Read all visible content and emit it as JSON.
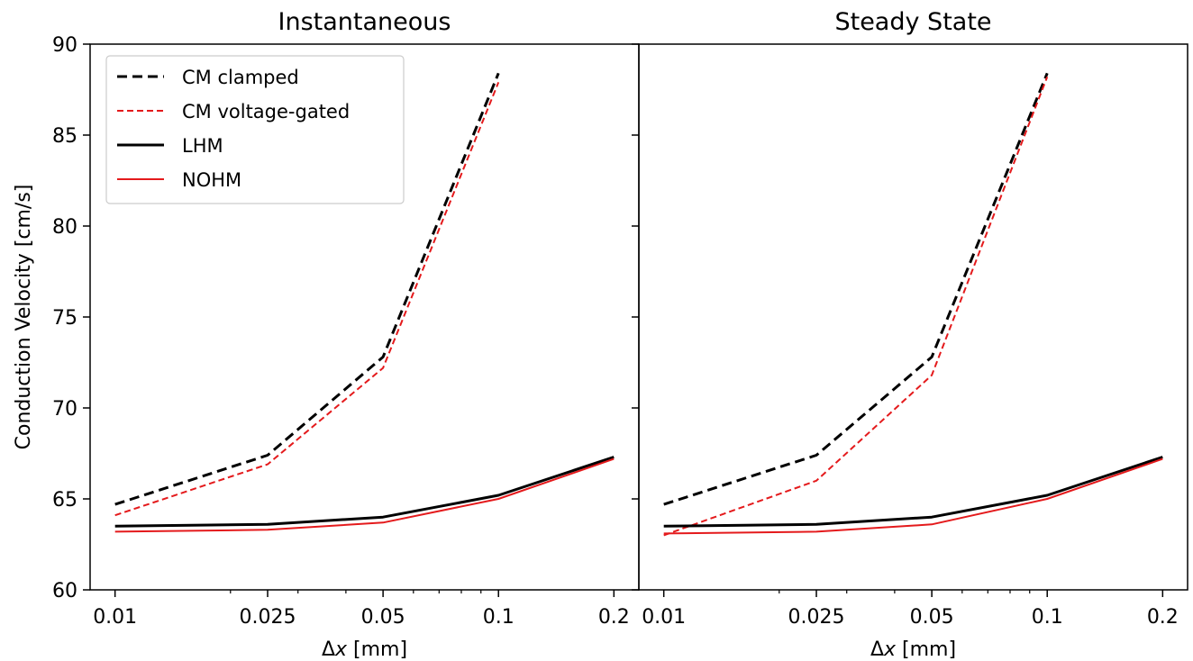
{
  "chart_data": {
    "type": "line",
    "shared": {
      "x": [
        0.01,
        0.025,
        0.05,
        0.1,
        0.2
      ],
      "xscale": "log",
      "xticks": [
        0.01,
        0.025,
        0.05,
        0.1,
        0.2
      ],
      "xtick_labels": [
        "0.01",
        "0.025",
        "0.05",
        "0.1",
        "0.2"
      ],
      "xlabel_prefix": "Δ",
      "xlabel_var": "x",
      "xlabel_suffix": " [mm]",
      "ylabel": "Conduction Velocity [cm/s]",
      "ylim": [
        60,
        90
      ],
      "yticks": [
        60,
        65,
        70,
        75,
        80,
        85,
        90
      ],
      "grid": false,
      "legend_position": "top-left"
    },
    "panels": [
      {
        "title": "Instantaneous",
        "series": [
          {
            "name": "CM clamped",
            "color": "#000000",
            "dash": "long-dash",
            "x": [
              0.01,
              0.025,
              0.05,
              0.1
            ],
            "values": [
              64.7,
              67.4,
              72.8,
              88.4
            ]
          },
          {
            "name": "CM voltage-gated",
            "color": "#e41a1c",
            "dash": "short-dash",
            "x": [
              0.01,
              0.025,
              0.05,
              0.1
            ],
            "values": [
              64.1,
              66.9,
              72.2,
              87.9
            ]
          },
          {
            "name": "LHM",
            "color": "#000000",
            "dash": "solid-thick",
            "x": [
              0.01,
              0.025,
              0.05,
              0.1,
              0.2
            ],
            "values": [
              63.5,
              63.6,
              64.0,
              65.2,
              67.3
            ]
          },
          {
            "name": "NOHM",
            "color": "#e41a1c",
            "dash": "solid-thin",
            "x": [
              0.01,
              0.025,
              0.05,
              0.1,
              0.2
            ],
            "values": [
              63.2,
              63.3,
              63.7,
              65.0,
              67.2
            ]
          }
        ]
      },
      {
        "title": "Steady State",
        "series": [
          {
            "name": "CM clamped",
            "color": "#000000",
            "dash": "long-dash",
            "x": [
              0.01,
              0.025,
              0.05,
              0.1
            ],
            "values": [
              64.7,
              67.4,
              72.8,
              88.4
            ]
          },
          {
            "name": "CM voltage-gated",
            "color": "#e41a1c",
            "dash": "short-dash",
            "x": [
              0.01,
              0.025,
              0.05,
              0.1
            ],
            "values": [
              63.0,
              66.0,
              71.8,
              88.2
            ]
          },
          {
            "name": "LHM",
            "color": "#000000",
            "dash": "solid-thick",
            "x": [
              0.01,
              0.025,
              0.05,
              0.1,
              0.2
            ],
            "values": [
              63.5,
              63.6,
              64.0,
              65.2,
              67.3
            ]
          },
          {
            "name": "NOHM",
            "color": "#e41a1c",
            "dash": "solid-thin",
            "x": [
              0.01,
              0.025,
              0.05,
              0.1,
              0.2
            ],
            "values": [
              63.1,
              63.2,
              63.6,
              65.0,
              67.2
            ]
          }
        ]
      }
    ]
  }
}
